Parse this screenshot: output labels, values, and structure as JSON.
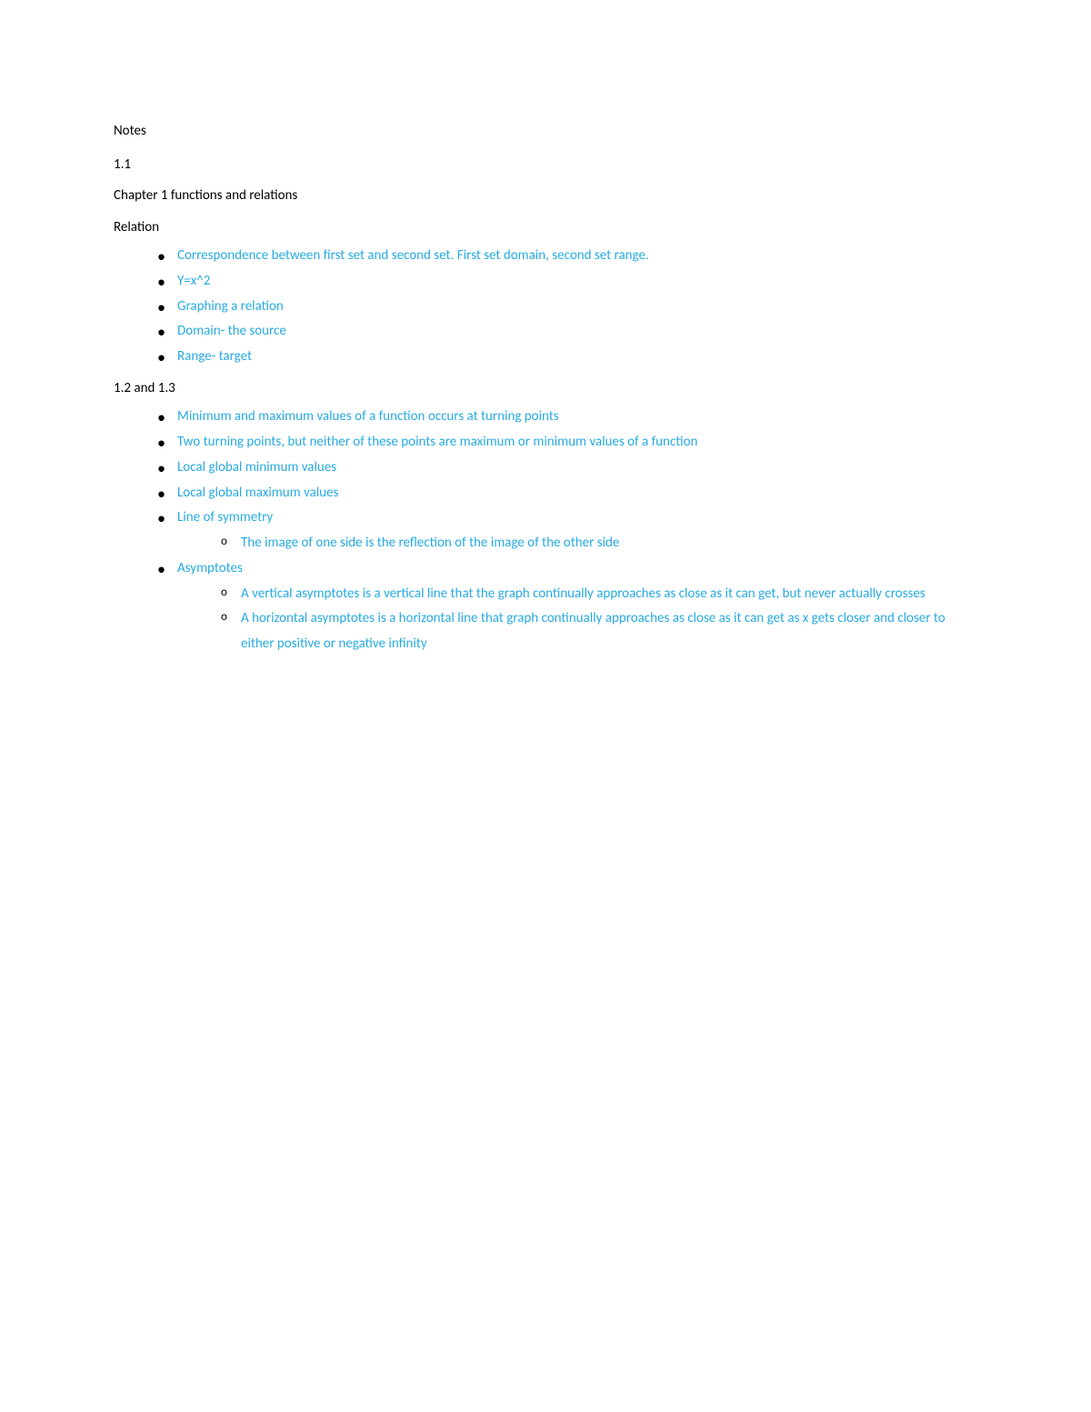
{
  "text_color_primary": "#000000",
  "text_color_accent": "#29abe2",
  "background_color": "#ffffff",
  "font_family": "Calibri",
  "font_size_pt": 11,
  "headings": {
    "notes": "Notes",
    "sec11": "1.1",
    "chapter": "Chapter 1 functions and relations",
    "relation": "Relation",
    "sec12_13": "1.2 and 1.3"
  },
  "relation_items": [
    "Correspondence between first set and second set. First set domain, second set range.",
    "Y=x^2",
    "Graphing a relation",
    "Domain- the source",
    "Range- target"
  ],
  "sec12_items": {
    "i0": "Minimum and maximum values of a function occurs at turning points",
    "i1": "Two turning points, but neither of these points are maximum or minimum values of a function",
    "i2": "Local global minimum values",
    "i3": "Local global maximum values",
    "i4": "Line of symmetry",
    "i4_sub": {
      "s0": "The image of one side is the reflection of the image of the other side"
    },
    "i5": "Asymptotes",
    "i5_sub": {
      "s0": "A vertical asymptotes is a vertical line that the graph continually approaches as close as it can get, but never actually crosses",
      "s1": "A horizontal asymptotes is a horizontal line that graph continually approaches as close as it can get as x gets closer and closer to either positive or negative infinity"
    }
  }
}
